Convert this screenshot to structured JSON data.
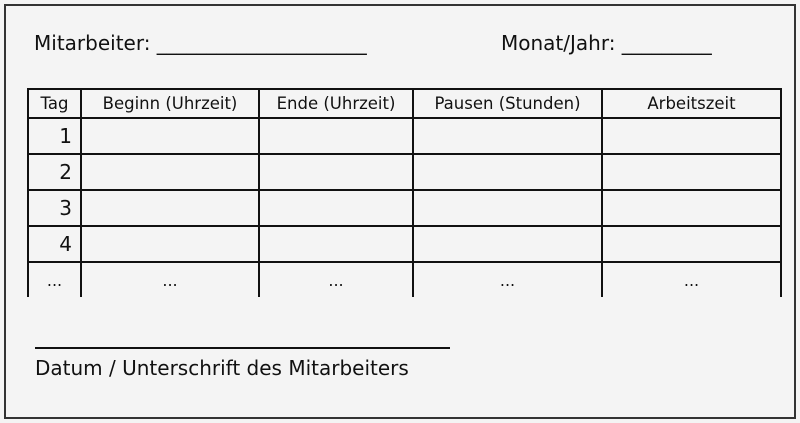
{
  "header": {
    "employee_label": "Mitarbeiter: _____________________",
    "month_label": "Monat/Jahr: _________"
  },
  "table": {
    "columns": [
      "Tag",
      "Beginn (Uhrzeit)",
      "Ende (Uhrzeit)",
      "Pausen (Stunden)",
      "Arbeitszeit"
    ],
    "rows": [
      [
        "1",
        "",
        "",
        "",
        ""
      ],
      [
        "2",
        "",
        "",
        "",
        ""
      ],
      [
        "3",
        "",
        "",
        "",
        ""
      ],
      [
        "4",
        "",
        "",
        "",
        ""
      ],
      [
        "...",
        "...",
        "...",
        "...",
        "..."
      ]
    ]
  },
  "footer": {
    "signature_label": "Datum / Unterschrift des Mitarbeiters"
  }
}
